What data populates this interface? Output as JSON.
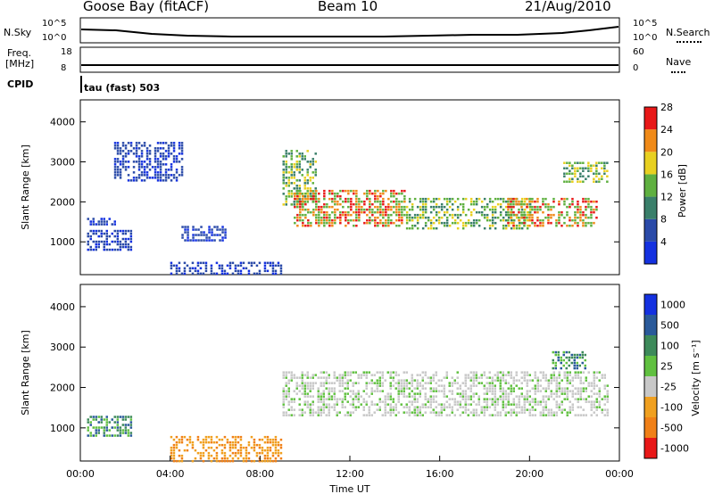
{
  "header": {
    "station": "Goose Bay (fitACF)",
    "beam": "Beam 10",
    "date": "21/Aug/2010"
  },
  "top_panels": {
    "nsky_label": "N.Sky",
    "nsky_ticks": [
      "10^5",
      "10^0"
    ],
    "nsearch_label": "N.Search",
    "nsearch_ticks": [
      "10^5",
      "10^0"
    ],
    "freq_label_1": "Freq.",
    "freq_label_2": "[MHz]",
    "freq_ticks": [
      "18",
      "8"
    ],
    "nave_label": "Nave",
    "nave_ticks": [
      "60",
      "0"
    ],
    "cpid_label": "CPID",
    "cpid_value": "tau (fast) 503"
  },
  "chart_data": [
    {
      "type": "heatmap",
      "name": "power",
      "xlabel": "",
      "ylabel": "Slant Range [km]",
      "ylim": [
        180,
        4550
      ],
      "yticks": [
        "1000",
        "2000",
        "3000",
        "4000"
      ],
      "colorbar": {
        "label": "Power [dB]",
        "ticks": [
          "4",
          "8",
          "12",
          "16",
          "20",
          "24",
          "28"
        ],
        "colors": [
          "#1431e0",
          "#2a4aa8",
          "#3a7f6a",
          "#5fb040",
          "#e8d020",
          "#f08a18",
          "#e81818"
        ]
      },
      "regions": [
        {
          "t_start": 0.3,
          "t_end": 2.3,
          "r_start": 800,
          "r_end": 1300,
          "level": "low"
        },
        {
          "t_start": 0.3,
          "t_end": 1.5,
          "r_start": 1400,
          "r_end": 1600,
          "level": "low"
        },
        {
          "t_start": 1.5,
          "t_end": 4.5,
          "r_start": 2500,
          "r_end": 3500,
          "level": "low"
        },
        {
          "t_start": 4.5,
          "t_end": 6.5,
          "r_start": 1000,
          "r_end": 1400,
          "level": "low"
        },
        {
          "t_start": 4.0,
          "t_end": 9.0,
          "r_start": 200,
          "r_end": 500,
          "level": "low"
        },
        {
          "t_start": 9.0,
          "t_end": 10.5,
          "r_start": 1900,
          "r_end": 3300,
          "level": "mid"
        },
        {
          "t_start": 9.5,
          "t_end": 14.5,
          "r_start": 1400,
          "r_end": 2300,
          "level": "high"
        },
        {
          "t_start": 14.5,
          "t_end": 20.0,
          "r_start": 1300,
          "r_end": 2100,
          "level": "mid"
        },
        {
          "t_start": 19.0,
          "t_end": 23.0,
          "r_start": 1400,
          "r_end": 2100,
          "level": "high"
        },
        {
          "t_start": 21.5,
          "t_end": 23.5,
          "r_start": 2500,
          "r_end": 3000,
          "level": "mid"
        }
      ]
    },
    {
      "type": "heatmap",
      "name": "velocity",
      "xlabel": "Time UT",
      "ylabel": "Slant Range [km]",
      "ylim": [
        180,
        4550
      ],
      "yticks": [
        "1000",
        "2000",
        "3000",
        "4000"
      ],
      "xticks": [
        "00:00",
        "04:00",
        "08:00",
        "12:00",
        "16:00",
        "20:00",
        "00:00"
      ],
      "colorbar": {
        "label": "Velocity [m s⁻¹]",
        "ticks": [
          "1000",
          "500",
          "100",
          "25",
          "-25",
          "-100",
          "-500",
          "-1000"
        ],
        "colors": [
          "#1431e0",
          "#2a5a9a",
          "#3d8a5a",
          "#60c040",
          "#c8c8c8",
          "#f0a020",
          "#f08018",
          "#e81818"
        ]
      },
      "regions": [
        {
          "t_start": 0.3,
          "t_end": 2.3,
          "r_start": 800,
          "r_end": 1300,
          "level": "pos"
        },
        {
          "t_start": 4.0,
          "t_end": 9.0,
          "r_start": 200,
          "r_end": 800,
          "level": "neg"
        },
        {
          "t_start": 9.0,
          "t_end": 23.5,
          "r_start": 1300,
          "r_end": 2400,
          "level": "zero"
        },
        {
          "t_start": 21.0,
          "t_end": 22.5,
          "r_start": 2500,
          "r_end": 2900,
          "level": "pos"
        }
      ]
    }
  ]
}
